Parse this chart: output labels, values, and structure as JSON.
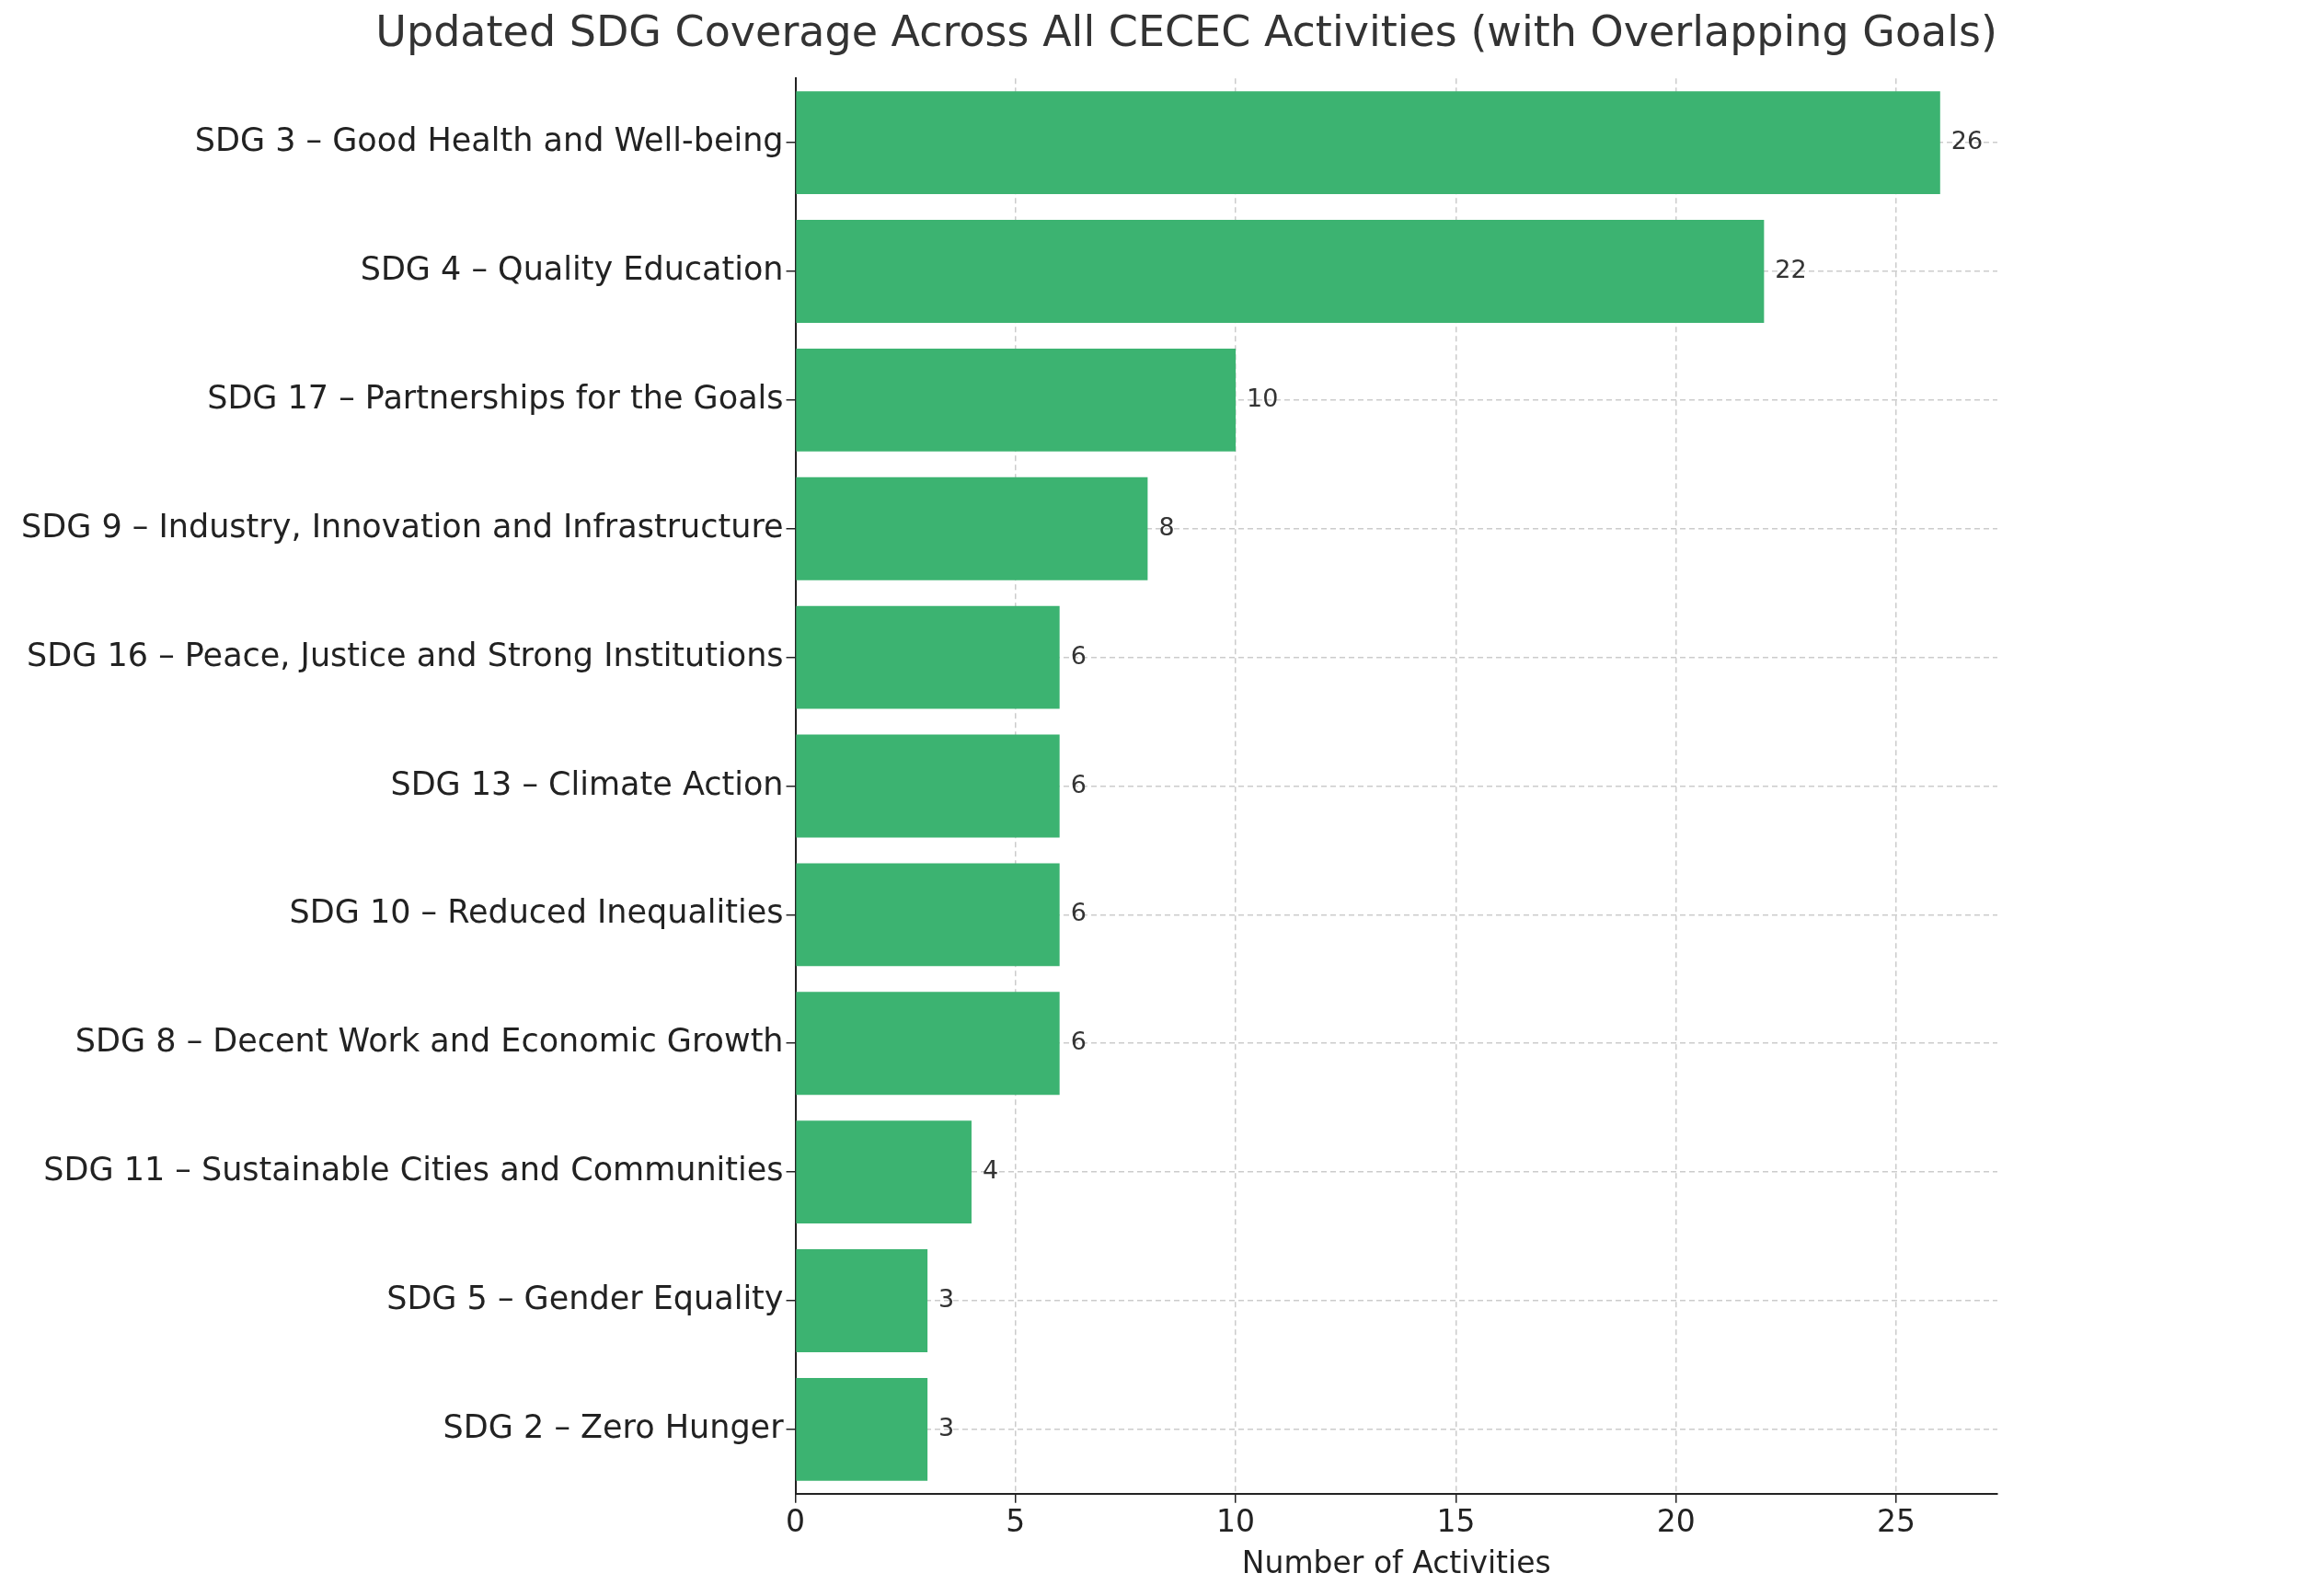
{
  "chart_data": {
    "type": "bar",
    "orientation": "horizontal",
    "title": "Updated SDG Coverage Across All CECEC Activities (with Overlapping Goals)",
    "xlabel": "Number of Activities",
    "categories": [
      "SDG 3 – Good Health and Well-being",
      "SDG 4 – Quality Education",
      "SDG 17 – Partnerships for the Goals",
      "SDG 9 – Industry, Innovation and Infrastructure",
      "SDG 16 – Peace, Justice and Strong Institutions",
      "SDG 13 – Climate Action",
      "SDG 10 – Reduced Inequalities",
      "SDG 8 – Decent Work and Economic Growth",
      "SDG 11 – Sustainable Cities and Communities",
      "SDG 5 – Gender Equality",
      "SDG 2 – Zero Hunger"
    ],
    "values": [
      26,
      22,
      10,
      8,
      6,
      6,
      6,
      6,
      4,
      3,
      3
    ],
    "color": "#3cb371",
    "xlim": [
      0,
      27.3
    ],
    "xticks": [
      0,
      5,
      10,
      15,
      20,
      25
    ],
    "grid": true,
    "data_labels": true
  }
}
